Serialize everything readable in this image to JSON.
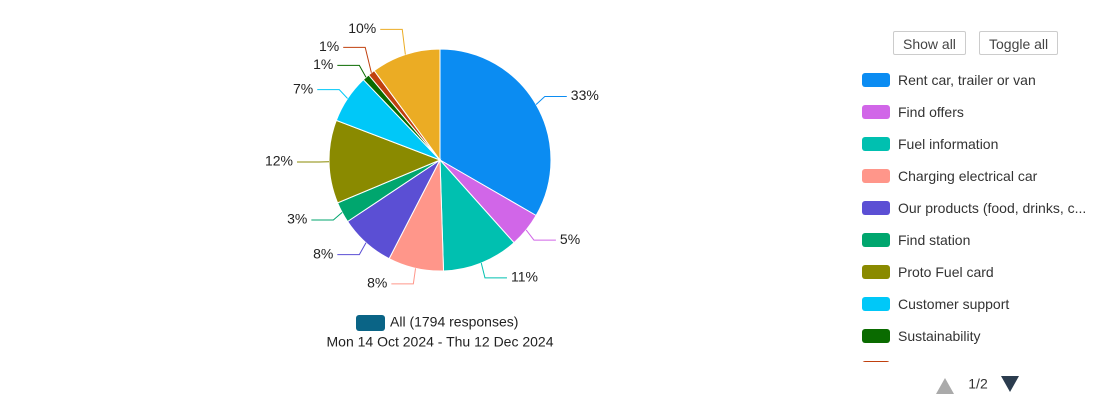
{
  "chart_data": {
    "type": "pie",
    "categories": [
      "Rent car, trailer or van",
      "Find offers",
      "Fuel information",
      "Charging electrical car",
      "Our products (food, drinks, c...",
      "Find station",
      "Proto Fuel card",
      "Customer support",
      "Sustainability",
      null,
      null
    ],
    "values": [
      33,
      5,
      11,
      8,
      8,
      3,
      12,
      7,
      1,
      1,
      10
    ],
    "value_labels": [
      "33%",
      "5%",
      "11%",
      "8%",
      "8%",
      "3%",
      "12%",
      "7%",
      "1%",
      "1%",
      "10%"
    ],
    "colors": [
      "#0b8cf2",
      "#d166e8",
      "#00c0b0",
      "#ff968a",
      "#5b4fd4",
      "#00a66e",
      "#8a8a00",
      "#00c8f8",
      "#0a6b00",
      "#c0400e",
      "#ebac24"
    ],
    "series_label": "All (1794 responses)",
    "series_color": "#0a6486",
    "date_range": "Mon 14 Oct 2024 - Thu 12 Dec 2024"
  },
  "controls": {
    "show_all": "Show all",
    "toggle_all": "Toggle all",
    "page": "1/2"
  }
}
